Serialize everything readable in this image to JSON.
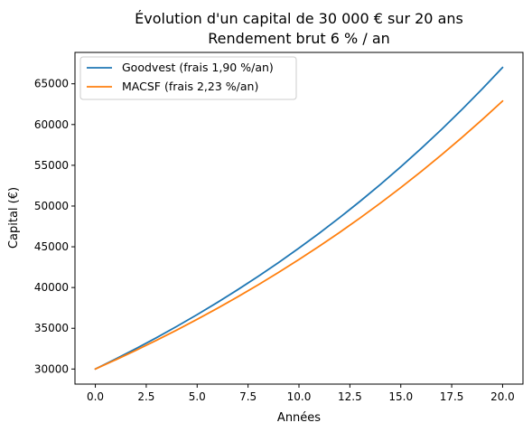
{
  "chart_data": {
    "type": "line",
    "title": [
      "Évolution d'un capital de 30 000 € sur 20 ans",
      "Rendement brut 6 % / an"
    ],
    "xlabel": "Années",
    "ylabel": "Capital (€)",
    "xlim": [
      -1,
      21
    ],
    "ylim": [
      28150,
      68850
    ],
    "xticks": [
      "0.0",
      "2.5",
      "5.0",
      "7.5",
      "10.0",
      "12.5",
      "15.0",
      "17.5",
      "20.0"
    ],
    "yticks": [
      "30000",
      "35000",
      "40000",
      "45000",
      "50000",
      "55000",
      "60000",
      "65000"
    ],
    "grid": false,
    "legend_position": "upper-left",
    "x": [
      0,
      1,
      2,
      3,
      4,
      5,
      6,
      7,
      8,
      9,
      10,
      11,
      12,
      13,
      14,
      15,
      16,
      17,
      18,
      19,
      20
    ],
    "series": [
      {
        "name": "Goodvest (frais 1,90 %/an)",
        "color": "#1f77b4",
        "values": [
          30000,
          31230,
          32510,
          33843,
          35231,
          36675,
          38179,
          39744,
          41374,
          43070,
          44836,
          46674,
          48588,
          50580,
          52654,
          54812,
          57060,
          59399,
          61834,
          64370,
          67009
        ]
      },
      {
        "name": "MACSF (frais 2,23 %/an)",
        "color": "#ff7f0e",
        "values": [
          30000,
          31131,
          32305,
          33523,
          34787,
          36098,
          37459,
          38871,
          40337,
          41858,
          43436,
          45073,
          46772,
          48536,
          50366,
          52265,
          54235,
          56280,
          58401,
          60603,
          62888
        ]
      }
    ]
  }
}
